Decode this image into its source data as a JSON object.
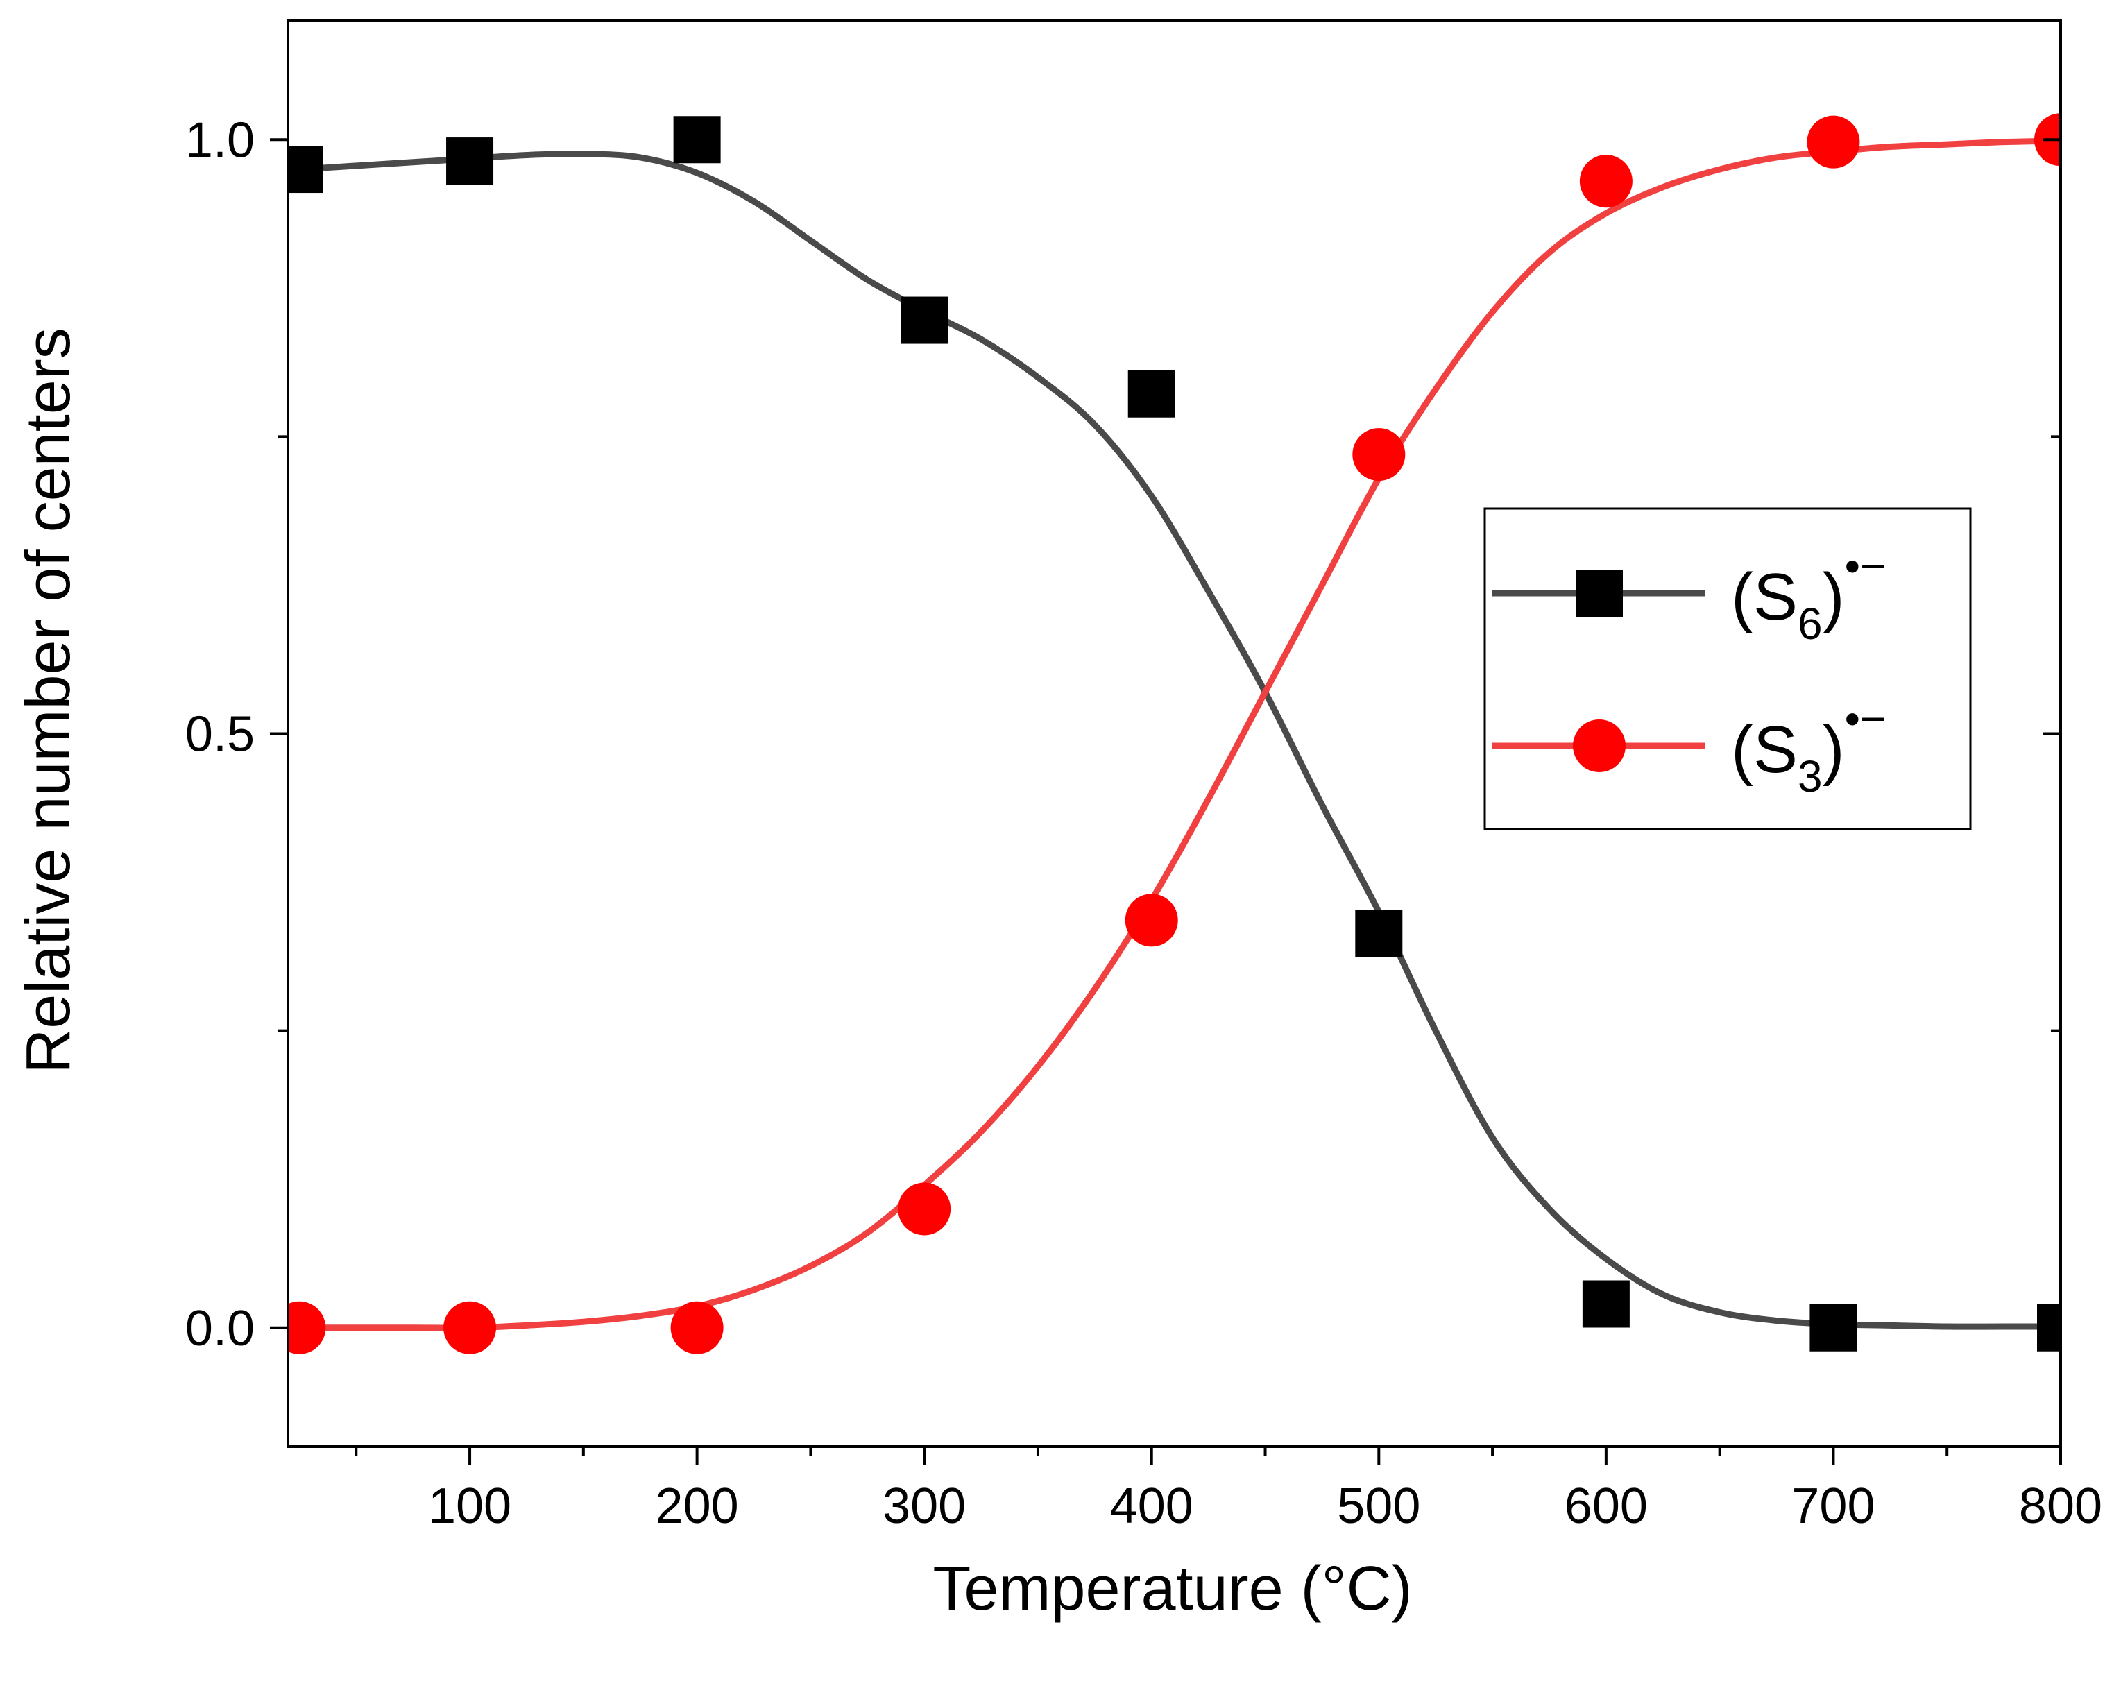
{
  "chart_data": {
    "type": "scatter",
    "xlabel": "Temperature (°C)",
    "ylabel": "Relative number of centers",
    "xlim": [
      20,
      800
    ],
    "ylim": [
      -0.1,
      1.1
    ],
    "x_ticks": [
      100,
      200,
      300,
      400,
      500,
      600,
      700,
      800
    ],
    "x_tick_labels": [
      "100",
      "200",
      "300",
      "400",
      "500",
      "600",
      "700",
      "800"
    ],
    "x_minor_ticks": [
      50,
      150,
      250,
      350,
      450,
      550,
      650,
      750
    ],
    "y_ticks": [
      0.0,
      0.5,
      1.0
    ],
    "y_tick_labels": [
      "0.0",
      "0.5",
      "1.0"
    ],
    "y_minor_ticks": [
      0.25,
      0.75
    ],
    "grid": false,
    "legend_position": "center-right",
    "series": [
      {
        "name": "(S6)•−",
        "legend_main": "(S",
        "legend_sub": "6",
        "legend_close": ")",
        "legend_sup": "•−",
        "marker": "square",
        "marker_color": "#000000",
        "line_color": "#4a4a4a",
        "x": [
          25,
          100,
          200,
          300,
          400,
          500,
          600,
          700,
          800
        ],
        "y": [
          0.975,
          0.982,
          1.0,
          0.848,
          0.786,
          0.332,
          0.02,
          0.0,
          0.0
        ],
        "fit_x": [
          25,
          50,
          75,
          100,
          125,
          150,
          175,
          200,
          225,
          250,
          275,
          300,
          325,
          350,
          375,
          400,
          425,
          450,
          475,
          500,
          525,
          550,
          575,
          600,
          625,
          650,
          675,
          700,
          725,
          750,
          775,
          800
        ],
        "fit_y": [
          0.975,
          0.978,
          0.981,
          0.984,
          0.987,
          0.988,
          0.985,
          0.972,
          0.948,
          0.915,
          0.882,
          0.856,
          0.832,
          0.8,
          0.76,
          0.7,
          0.62,
          0.535,
          0.44,
          0.35,
          0.25,
          0.16,
          0.1,
          0.058,
          0.028,
          0.013,
          0.006,
          0.003,
          0.002,
          0.001,
          0.001,
          0.001
        ]
      },
      {
        "name": "(S3)•−",
        "legend_main": "(S",
        "legend_sub": "3",
        "legend_close": ")",
        "legend_sup": "•−",
        "marker": "circle",
        "marker_color": "#ff0000",
        "line_color": "#f04040",
        "x": [
          25,
          100,
          200,
          300,
          400,
          500,
          600,
          700,
          800
        ],
        "y": [
          0.0,
          0.0,
          0.0,
          0.1,
          0.343,
          0.735,
          0.965,
          0.998,
          1.0
        ],
        "fit_x": [
          25,
          50,
          75,
          100,
          125,
          150,
          175,
          200,
          225,
          250,
          275,
          300,
          325,
          350,
          375,
          400,
          425,
          450,
          475,
          500,
          525,
          550,
          575,
          600,
          625,
          650,
          675,
          700,
          725,
          750,
          775,
          800
        ],
        "fit_y": [
          0.0,
          0.0,
          0.0,
          0.0,
          0.002,
          0.005,
          0.01,
          0.018,
          0.032,
          0.052,
          0.08,
          0.12,
          0.165,
          0.22,
          0.285,
          0.36,
          0.445,
          0.535,
          0.625,
          0.715,
          0.79,
          0.855,
          0.905,
          0.938,
          0.96,
          0.975,
          0.985,
          0.99,
          0.994,
          0.996,
          0.998,
          0.999
        ]
      }
    ]
  }
}
